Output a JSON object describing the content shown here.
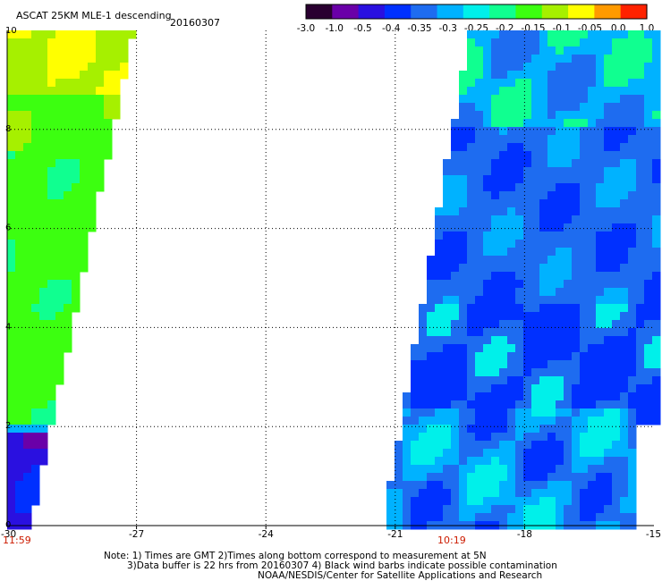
{
  "header": {
    "title": "ASCAT 25KM MLE-1 descending",
    "date": "20160307"
  },
  "colorbar": {
    "labels": [
      "-3.0",
      "-1.0",
      "-0.5",
      "-0.4",
      "-0.35",
      "-0.3",
      "-0.25",
      "-0.2",
      "-0.15",
      "-0.1",
      "-0.05",
      "0.0",
      "1.0"
    ],
    "colors": [
      "#2a0030",
      "#6a00a8",
      "#2a10e0",
      "#0030ff",
      "#1e6cf0",
      "#00b2ff",
      "#00f0ea",
      "#10ff90",
      "#3cff10",
      "#a6f000",
      "#ffff00",
      "#ff9a00",
      "#ff2200"
    ]
  },
  "axes": {
    "y_ticks": [
      "10",
      "8",
      "6",
      "4",
      "2",
      "0"
    ],
    "x_ticks": [
      "-30",
      "-27",
      "-24",
      "-21",
      "-18",
      "-15"
    ]
  },
  "times": {
    "left_swath": "11:59",
    "right_swath": "10:19"
  },
  "notes": {
    "line1": "Note: 1) Times are GMT 2)Times along bottom correspond to measurement at 5N",
    "line2": "3)Data buffer is 22 hrs from 20160307 4) Black wind barbs indicate possible contamination",
    "line3": "NOAA/NESDIS/Center for Satellite Applications and Research"
  }
}
